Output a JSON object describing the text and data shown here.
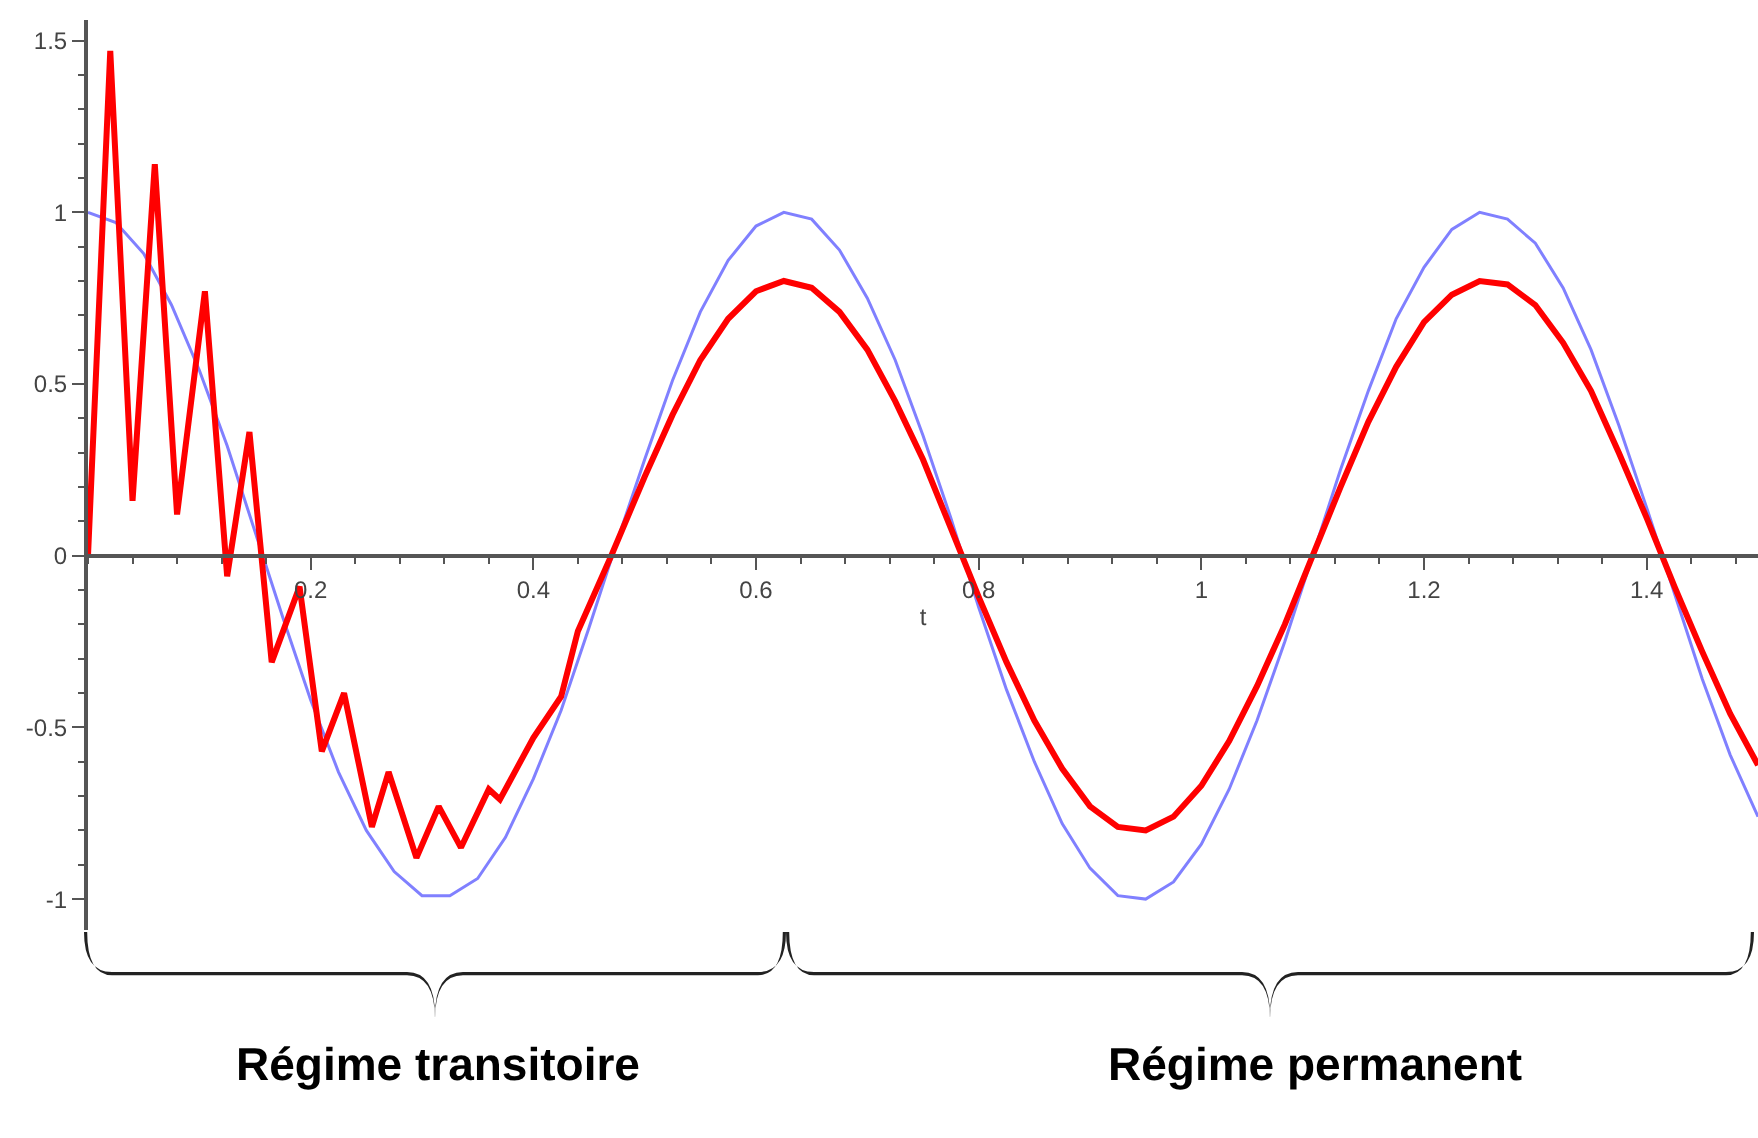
{
  "chart_data": {
    "type": "line",
    "xlabel": "t",
    "xlim": [
      0,
      1.5
    ],
    "ylim": [
      -1.09,
      1.56
    ],
    "xticks": [
      0.2,
      0.4,
      0.6,
      0.8,
      1,
      1.2,
      1.4
    ],
    "yticks": [
      -1,
      -0.5,
      0,
      0.5,
      1,
      1.5
    ],
    "grid": false,
    "marker": "none",
    "line_style": "solid",
    "series": [
      {
        "color": "#8080ff",
        "x": [
          0,
          0.025,
          0.05,
          0.075,
          0.1,
          0.125,
          0.15,
          0.175,
          0.2,
          0.225,
          0.25,
          0.275,
          0.3,
          0.325,
          0.35,
          0.375,
          0.4,
          0.425,
          0.45,
          0.475,
          0.5,
          0.525,
          0.55,
          0.575,
          0.6,
          0.625,
          0.65,
          0.675,
          0.7,
          0.725,
          0.75,
          0.775,
          0.8,
          0.825,
          0.85,
          0.875,
          0.9,
          0.925,
          0.95,
          0.975,
          1,
          1.025,
          1.05,
          1.075,
          1.1,
          1.125,
          1.15,
          1.175,
          1.2,
          1.225,
          1.25,
          1.275,
          1.3,
          1.325,
          1.35,
          1.375,
          1.4,
          1.425,
          1.45,
          1.475,
          1.5
        ],
        "values": [
          1.0,
          0.97,
          0.88,
          0.73,
          0.54,
          0.32,
          0.07,
          -0.18,
          -0.42,
          -0.63,
          -0.8,
          -0.92,
          -0.99,
          -0.99,
          -0.94,
          -0.82,
          -0.65,
          -0.45,
          -0.21,
          0.04,
          0.28,
          0.51,
          0.71,
          0.86,
          0.96,
          1.0,
          0.98,
          0.89,
          0.75,
          0.57,
          0.35,
          0.11,
          -0.15,
          -0.39,
          -0.6,
          -0.78,
          -0.91,
          -0.99,
          -1.0,
          -0.95,
          -0.84,
          -0.68,
          -0.48,
          -0.25,
          0.0,
          0.25,
          0.48,
          0.69,
          0.84,
          0.95,
          1.0,
          0.98,
          0.91,
          0.78,
          0.6,
          0.38,
          0.14,
          -0.11,
          -0.36,
          -0.58,
          -0.76
        ]
      },
      {
        "color": "#ff0000",
        "x": [
          0,
          0.02,
          0.04,
          0.06,
          0.08,
          0.105,
          0.125,
          0.145,
          0.165,
          0.19,
          0.21,
          0.23,
          0.255,
          0.27,
          0.295,
          0.315,
          0.335,
          0.36,
          0.37,
          0.4,
          0.425,
          0.44,
          0.47,
          0.5,
          0.525,
          0.55,
          0.575,
          0.6,
          0.625,
          0.65,
          0.675,
          0.7,
          0.725,
          0.75,
          0.775,
          0.8,
          0.825,
          0.85,
          0.875,
          0.9,
          0.925,
          0.95,
          0.975,
          1,
          1.025,
          1.05,
          1.075,
          1.1,
          1.125,
          1.15,
          1.175,
          1.2,
          1.225,
          1.25,
          1.275,
          1.3,
          1.325,
          1.35,
          1.375,
          1.4,
          1.425,
          1.45,
          1.475,
          1.5
        ],
        "values": [
          0,
          1.47,
          0.16,
          1.14,
          0.12,
          0.77,
          -0.06,
          0.36,
          -0.31,
          -0.09,
          -0.57,
          -0.4,
          -0.79,
          -0.63,
          -0.88,
          -0.73,
          -0.85,
          -0.68,
          -0.71,
          -0.53,
          -0.41,
          -0.22,
          0,
          0.23,
          0.41,
          0.57,
          0.69,
          0.77,
          0.8,
          0.78,
          0.71,
          0.6,
          0.45,
          0.28,
          0.08,
          -0.12,
          -0.31,
          -0.48,
          -0.62,
          -0.73,
          -0.79,
          -0.8,
          -0.76,
          -0.67,
          -0.54,
          -0.38,
          -0.2,
          0.0,
          0.2,
          0.39,
          0.55,
          0.68,
          0.76,
          0.8,
          0.79,
          0.73,
          0.62,
          0.48,
          0.3,
          0.11,
          -0.09,
          -0.28,
          -0.46,
          -0.61
        ]
      }
    ],
    "annotations": [
      "Régime transitoire",
      "Régime permanent"
    ]
  }
}
